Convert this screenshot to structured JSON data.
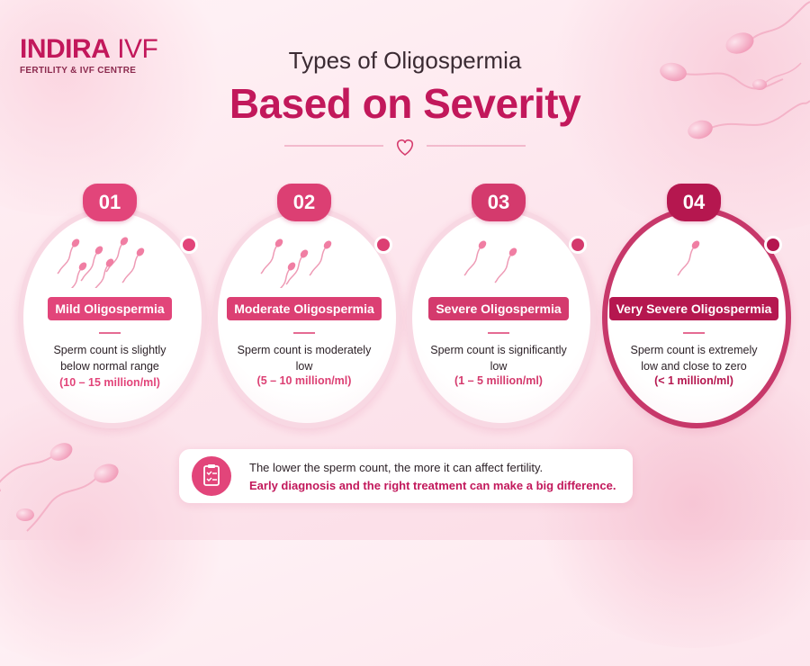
{
  "brand": {
    "name": "INDIRA",
    "name_suffix": "IVF",
    "tagline": "FERTILITY & IVF CENTRE"
  },
  "title": {
    "line1": "Types of Oligospermia",
    "line2": "Based on Severity"
  },
  "cards": [
    {
      "number": "01",
      "name": "Mild Oligospermia",
      "description": "Sperm count is slightly below normal range",
      "range": "(10 – 15 million/ml)",
      "color": "#e2457a"
    },
    {
      "number": "02",
      "name": "Moderate Oligospermia",
      "description": "Sperm count is moderately low",
      "range": "(5 – 10 million/ml)",
      "color": "#dc3f73"
    },
    {
      "number": "03",
      "name": "Severe Oligospermia",
      "description": "Sperm count is significantly low",
      "range": "(1 – 5 million/ml)",
      "color": "#d43a6d"
    },
    {
      "number": "04",
      "name": "Very Severe Oligospermia",
      "description": "Sperm count is extremely low and close to zero",
      "range": "(< 1 million/ml)",
      "color": "#b5174f"
    }
  ],
  "footer": {
    "line1": "The lower the sperm count, the more it can affect fertility.",
    "line2": "Early diagnosis and the right treatment can make a big difference."
  },
  "icons": {
    "divider": "heart-icon",
    "footer": "clipboard-icon",
    "illustration": "sperm-icon"
  },
  "colors": {
    "accent": "#c2185b",
    "title_dark": "#3b2b33",
    "background": "#fde7ee"
  }
}
